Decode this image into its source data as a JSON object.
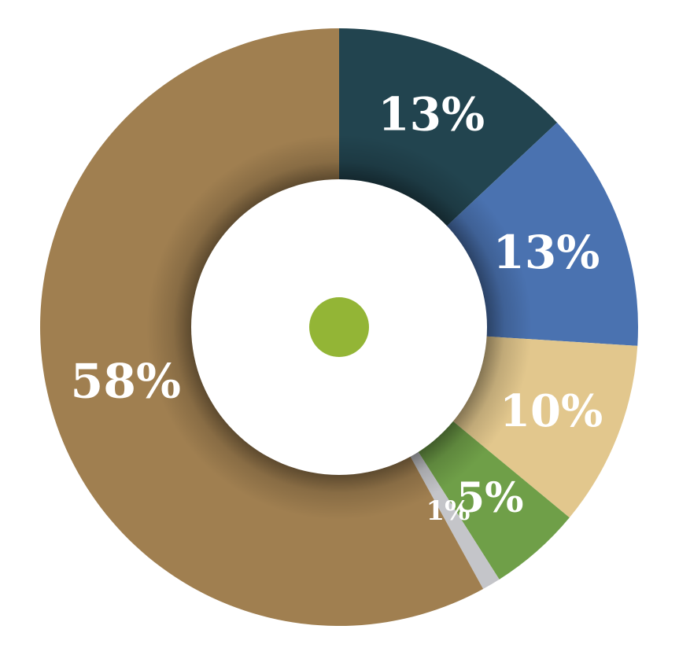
{
  "chart_data": {
    "type": "pie",
    "variant": "donut",
    "slices": [
      {
        "label": "13%",
        "value": 13,
        "color": "#22444f"
      },
      {
        "label": "13%",
        "value": 13,
        "color": "#4a72b0"
      },
      {
        "label": "10%",
        "value": 10,
        "color": "#e2c78d"
      },
      {
        "label": "5%",
        "value": 5,
        "color": "#6f9f48"
      },
      {
        "label": "1%",
        "value": 1,
        "color": "#c4c5c9"
      },
      {
        "label": "58%",
        "value": 58,
        "color": "#a07f50"
      }
    ],
    "center_dot_color": "#93b536",
    "start_angle": "top",
    "direction": "clockwise",
    "legend": "none",
    "title": ""
  }
}
